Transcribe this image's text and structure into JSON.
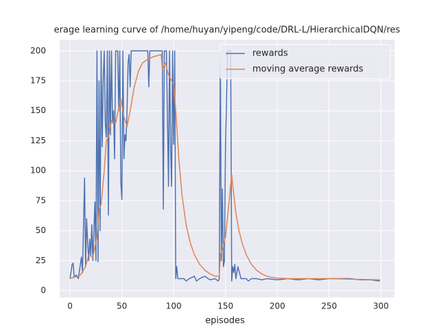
{
  "chart_data": {
    "type": "line",
    "title": "erage learning curve of /home/huyan/yipeng/code/DRL-L/HierarchicalDQN/res",
    "x_label": "episodes",
    "xlim": [
      -10,
      313
    ],
    "ylim": [
      -5.7,
      209.3
    ],
    "xticks": [
      0,
      50,
      100,
      150,
      200,
      250,
      300
    ],
    "yticks": [
      0,
      25,
      50,
      75,
      100,
      125,
      150,
      175,
      200
    ],
    "grid": true,
    "legend": "upper right",
    "series": [
      {
        "name": "rewards",
        "color": "#4c72b0",
        "x": [
          0,
          2,
          3,
          4,
          6,
          8,
          11,
          12,
          14,
          15,
          16,
          17,
          18,
          19,
          20,
          21,
          22,
          24,
          25,
          26,
          27,
          28,
          29,
          30,
          31,
          32,
          33,
          34,
          35,
          36,
          37,
          38,
          39,
          40,
          41,
          42,
          43,
          44,
          46,
          47,
          48,
          49,
          50,
          51,
          52,
          53,
          54,
          55,
          56,
          57,
          58,
          59,
          60,
          75,
          76,
          77,
          89,
          90,
          91,
          93,
          95,
          96,
          97,
          98,
          99,
          100,
          101,
          102,
          103,
          104,
          110,
          112,
          115,
          120,
          122,
          125,
          130,
          135,
          140,
          143,
          144,
          145,
          146,
          147,
          148,
          149,
          150,
          152,
          154,
          155,
          156,
          157,
          158,
          159,
          160,
          162,
          165,
          170,
          172,
          175,
          180,
          185,
          190,
          200,
          210,
          220,
          230,
          240,
          250,
          260,
          270,
          280,
          290,
          299
        ],
        "values": [
          10,
          22,
          23,
          11,
          13,
          10,
          28,
          15,
          94,
          20,
          60,
          40,
          25,
          43,
          30,
          55,
          25,
          74,
          25,
          200,
          24,
          175,
          50,
          200,
          120,
          175,
          200,
          140,
          128,
          200,
          63,
          200,
          130,
          200,
          140,
          150,
          110,
          200,
          200,
          150,
          200,
          90,
          76,
          200,
          110,
          130,
          125,
          150,
          190,
          197,
          170,
          200,
          200,
          200,
          170,
          200,
          200,
          68,
          200,
          200,
          87,
          200,
          120,
          87,
          200,
          122,
          200,
          10,
          20,
          10,
          10,
          8,
          10,
          12,
          8,
          10,
          12,
          9,
          10,
          8,
          10,
          200,
          25,
          85,
          20,
          25,
          120,
          200,
          200,
          200,
          8,
          20,
          15,
          22,
          10,
          20,
          10,
          10,
          8,
          10,
          10,
          9,
          10,
          9,
          10,
          9,
          10,
          9,
          10,
          10,
          10,
          9,
          9,
          8
        ]
      },
      {
        "name": "moving average rewards",
        "color": "#dd8452",
        "x": [
          0,
          10,
          15,
          18,
          22,
          26,
          28,
          30,
          33,
          35,
          37,
          40,
          44,
          49,
          52,
          55,
          58,
          62,
          66,
          70,
          75,
          80,
          88,
          89,
          92,
          95,
          98,
          100,
          102,
          105,
          108,
          112,
          116,
          120,
          125,
          130,
          135,
          140,
          144,
          145,
          147,
          150,
          153,
          156,
          158,
          160,
          163,
          166,
          170,
          175,
          180,
          185,
          190,
          195,
          200,
          210,
          220,
          250,
          299
        ],
        "values": [
          10,
          13,
          20,
          30,
          28,
          45,
          68,
          72,
          100,
          125,
          128,
          142,
          140,
          160,
          145,
          137,
          150,
          170,
          183,
          190,
          193,
          195,
          197,
          185,
          190,
          180,
          175,
          172,
          150,
          110,
          80,
          55,
          40,
          30,
          22,
          17,
          14,
          12,
          12,
          30,
          35,
          45,
          70,
          97,
          80,
          65,
          50,
          40,
          30,
          22,
          17,
          14,
          12,
          11,
          10.5,
          10,
          10,
          10,
          9
        ]
      }
    ]
  }
}
